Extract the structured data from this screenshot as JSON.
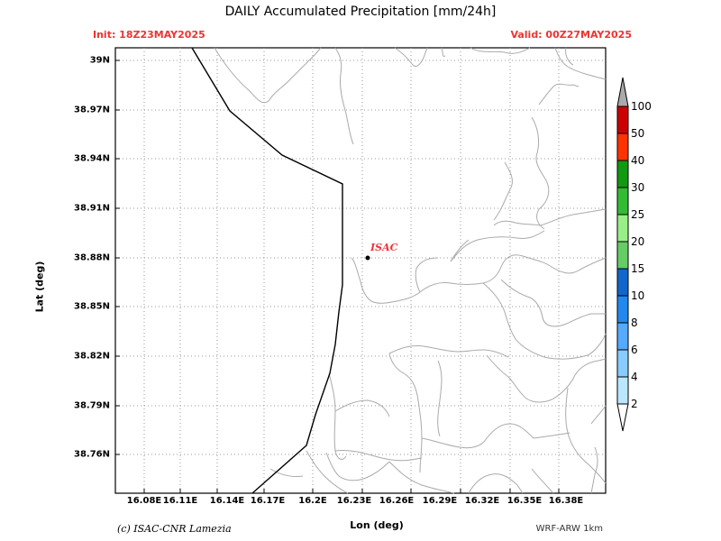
{
  "map": {
    "title": "DAILY Accumulated Precipitation [mm/24h]",
    "init": "Init: 18Z23MAY2025",
    "valid": "Valid: 00Z27MAY2025",
    "ylabel": "Lat (deg)",
    "xlabel": "Lon (deg)",
    "lat_ticks": [
      "39N",
      "38.97N",
      "38.94N",
      "38.91N",
      "38.88N",
      "38.85N",
      "38.82N",
      "38.79N",
      "38.76N"
    ],
    "lon_ticks": [
      "16.08E",
      "16.11E",
      "16.14E",
      "16.17E",
      "16.2E",
      "16.23E",
      "16.26E",
      "16.29E",
      "16.32E",
      "16.35E",
      "16.38E"
    ],
    "station": {
      "name": "ISAC",
      "lon": 16.235,
      "lat": 38.88
    },
    "credit": "(c) ISAC-CNR Lamezia",
    "model": "WRF-ARW 1km"
  },
  "colorbar": {
    "labels": [
      "100",
      "50",
      "40",
      "30",
      "25",
      "20",
      "15",
      "10",
      "8",
      "6",
      "4",
      "2"
    ],
    "colors": [
      "#cc0000",
      "#ff3300",
      "#119911",
      "#33bb33",
      "#99ee88",
      "#66cc66",
      "#1166cc",
      "#2288ee",
      "#55aaff",
      "#88ccff",
      "#bbe6ff",
      "#eeffff"
    ],
    "over_color": "#aaaaaa",
    "under_color": "#ffffff"
  }
}
